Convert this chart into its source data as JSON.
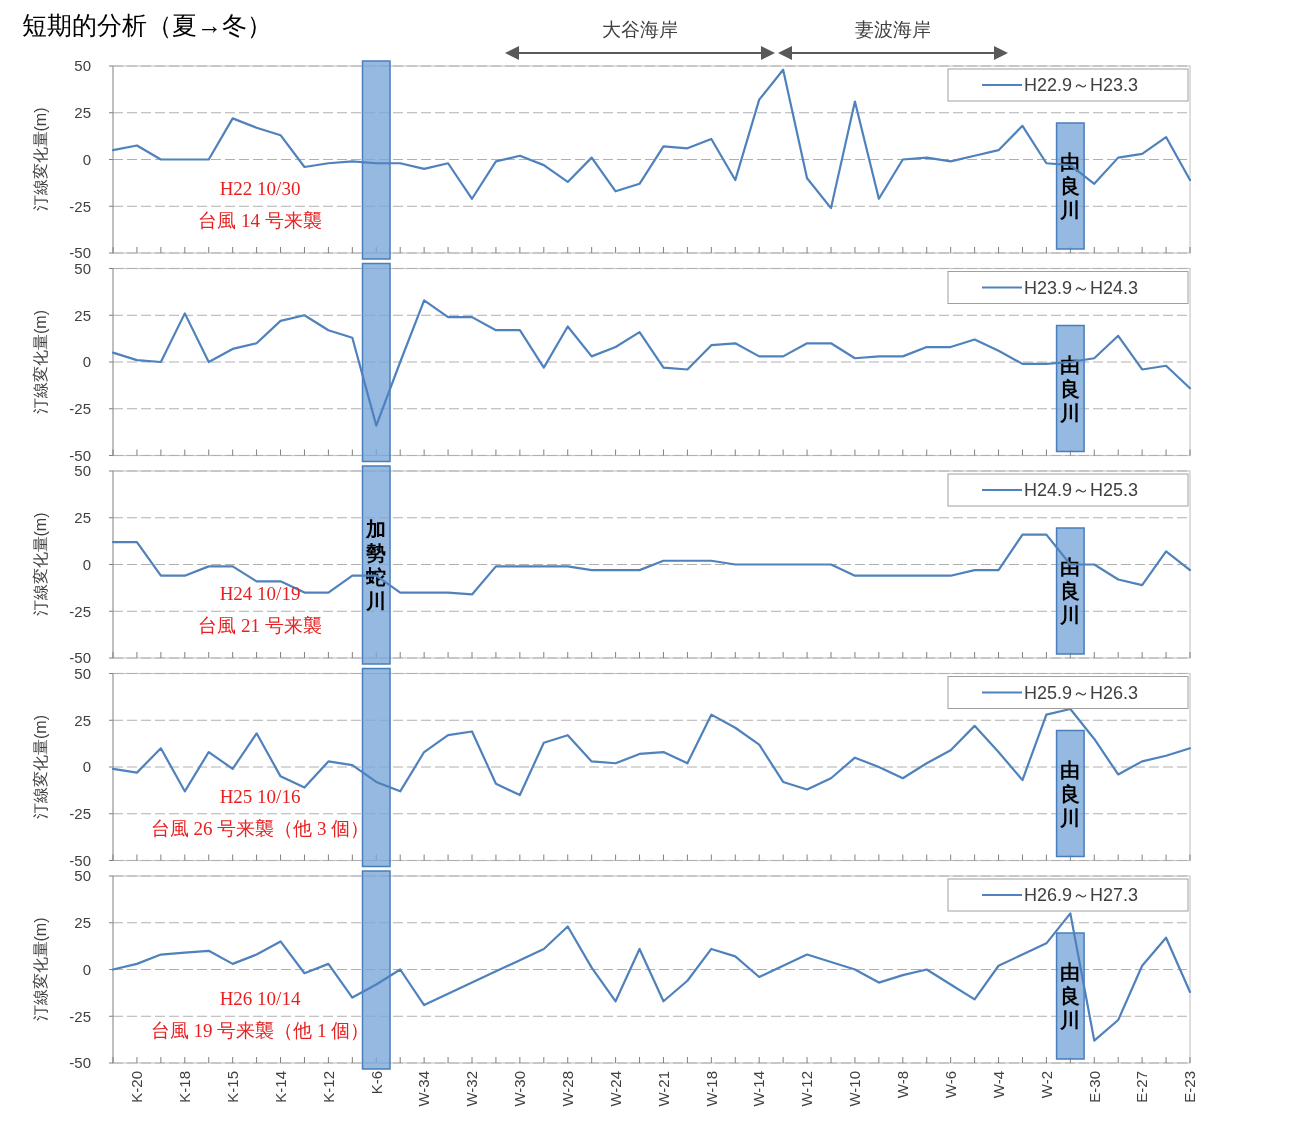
{
  "chart_data": [
    {
      "type": "line",
      "title": "短期的分析（夏→冬）",
      "ylabel": "汀線変化量(m)",
      "categories": [
        null,
        "K-20",
        null,
        "K-18",
        null,
        "K-15",
        null,
        "K-14",
        null,
        "K-12",
        null,
        "K-6",
        null,
        "W-34",
        null,
        "W-32",
        null,
        "W-30",
        null,
        "W-28",
        null,
        "W-24",
        null,
        "W-21",
        null,
        "W-18",
        null,
        "W-14",
        null,
        "W-12",
        null,
        "W-10",
        null,
        "W-8",
        null,
        "W-6",
        null,
        "W-4",
        null,
        "W-2",
        null,
        "E-30",
        null,
        "E-27",
        null,
        "E-23"
      ],
      "series": [
        {
          "name": "H22.9～H23.3",
          "color": "#4f81bd",
          "values": [
            5,
            7.5,
            0,
            0,
            0,
            22,
            17,
            13,
            -4,
            -2,
            -1,
            -2,
            -2,
            -5,
            -2,
            -21,
            -1,
            2,
            -3,
            -12,
            1,
            -17,
            -13,
            7,
            6,
            11,
            -11,
            32,
            48,
            -10,
            -26,
            31,
            -21,
            0,
            1,
            -1,
            2,
            5,
            18,
            -2,
            -3,
            -13,
            1,
            3,
            12,
            -11
          ]
        }
      ],
      "ylim": [
        -50,
        50
      ],
      "yticks": [
        -50,
        -25,
        0,
        25,
        50
      ],
      "grid": "y",
      "legend": "top right",
      "tick_labels": "y",
      "bands": [
        {
          "axis": "x",
          "from": "K-6",
          "to": "K-6",
          "color": "#7aa7d8"
        },
        {
          "axis": "x",
          "from": "W-2",
          "to": "E-30",
          "label": "由良川",
          "color": "#7aa7d8"
        }
      ],
      "annotations": [
        "大谷海岸",
        "妻波海岸",
        "H22 10/30",
        "台風 14 号来襲"
      ]
    },
    {
      "type": "line",
      "ylabel": "汀線変化量(m)",
      "categories": [
        null,
        "K-20",
        null,
        "K-18",
        null,
        "K-15",
        null,
        "K-14",
        null,
        "K-12",
        null,
        "K-6",
        null,
        "W-34",
        null,
        "W-32",
        null,
        "W-30",
        null,
        "W-28",
        null,
        "W-24",
        null,
        "W-21",
        null,
        "W-18",
        null,
        "W-14",
        null,
        "W-12",
        null,
        "W-10",
        null,
        "W-8",
        null,
        "W-6",
        null,
        "W-4",
        null,
        "W-2",
        null,
        "E-30",
        null,
        "E-27",
        null,
        "E-23"
      ],
      "series": [
        {
          "name": "H23.9～H24.3",
          "color": "#4f81bd",
          "values": [
            5,
            1,
            0,
            26,
            0,
            7,
            10,
            22,
            25,
            17,
            13,
            -34,
            0,
            33,
            24,
            24,
            17,
            17,
            -3,
            19,
            3,
            8,
            16,
            -3,
            -4,
            9,
            10,
            3,
            3,
            10,
            10,
            2,
            3,
            3,
            8,
            8,
            12,
            6,
            -1,
            -1,
            0,
            2,
            14,
            -4,
            -2,
            -14
          ]
        }
      ],
      "ylim": [
        -50,
        50
      ],
      "yticks": [
        -50,
        -25,
        0,
        25,
        50
      ],
      "grid": "y",
      "legend": "top right",
      "tick_labels": "y",
      "bands": [
        {
          "axis": "x",
          "from": "K-6",
          "to": "K-6",
          "color": "#7aa7d8"
        },
        {
          "axis": "x",
          "from": "W-2",
          "to": "E-30",
          "label": "由良川",
          "color": "#7aa7d8"
        }
      ]
    },
    {
      "type": "line",
      "ylabel": "汀線変化量(m)",
      "categories": [
        null,
        "K-20",
        null,
        "K-18",
        null,
        "K-15",
        null,
        "K-14",
        null,
        "K-12",
        null,
        "K-6",
        null,
        "W-34",
        null,
        "W-32",
        null,
        "W-30",
        null,
        "W-28",
        null,
        "W-24",
        null,
        "W-21",
        null,
        "W-18",
        null,
        "W-14",
        null,
        "W-12",
        null,
        "W-10",
        null,
        "W-8",
        null,
        "W-6",
        null,
        "W-4",
        null,
        "W-2",
        null,
        "E-30",
        null,
        "E-27",
        null,
        "E-23"
      ],
      "series": [
        {
          "name": "H24.9～H25.3",
          "color": "#4f81bd",
          "values": [
            12,
            12,
            -6,
            -6,
            -1,
            -1,
            -9,
            -9,
            -15,
            -15,
            -6,
            -6,
            -15,
            -15,
            -15,
            -16,
            -1,
            -1,
            -1,
            -1,
            -3,
            -3,
            -3,
            2,
            2,
            2,
            0,
            0,
            0,
            0,
            0,
            -6,
            -6,
            -6,
            -6,
            -6,
            -3,
            -3,
            16,
            16,
            0,
            0,
            -8,
            -11,
            7,
            -3
          ]
        }
      ],
      "ylim": [
        -50,
        50
      ],
      "yticks": [
        -50,
        -25,
        0,
        25,
        50
      ],
      "grid": "y",
      "legend": "top right",
      "tick_labels": "y",
      "bands": [
        {
          "axis": "x",
          "from": "K-6",
          "to": "K-6",
          "label": "加勢蛇川",
          "color": "#7aa7d8"
        },
        {
          "axis": "x",
          "from": "W-2",
          "to": "E-30",
          "label": "由良川",
          "color": "#7aa7d8"
        }
      ],
      "annotations": [
        "H24 10/19",
        "台風 21 号来襲"
      ]
    },
    {
      "type": "line",
      "ylabel": "汀線変化量(m)",
      "categories": [
        null,
        "K-20",
        null,
        "K-18",
        null,
        "K-15",
        null,
        "K-14",
        null,
        "K-12",
        null,
        "K-6",
        null,
        "W-34",
        null,
        "W-32",
        null,
        "W-30",
        null,
        "W-28",
        null,
        "W-24",
        null,
        "W-21",
        null,
        "W-18",
        null,
        "W-14",
        null,
        "W-12",
        null,
        "W-10",
        null,
        "W-8",
        null,
        "W-6",
        null,
        "W-4",
        null,
        "W-2",
        null,
        "E-30",
        null,
        "E-27",
        null,
        "E-23"
      ],
      "series": [
        {
          "name": "H25.9～H26.3",
          "color": "#4f81bd",
          "values": [
            -1,
            -3,
            10,
            -13,
            8,
            -1,
            18,
            -5,
            -11,
            3,
            1,
            -8,
            -13,
            8,
            17,
            19,
            -9,
            -15,
            13,
            17,
            3,
            2,
            7,
            8,
            2,
            28,
            21,
            12,
            -8,
            -12,
            -6,
            5,
            0,
            -6,
            2,
            9,
            22,
            8,
            -7,
            28,
            31,
            15,
            -4,
            3,
            6,
            10
          ]
        }
      ],
      "ylim": [
        -50,
        50
      ],
      "yticks": [
        -50,
        -25,
        0,
        25,
        50
      ],
      "grid": "y",
      "legend": "top right",
      "tick_labels": "y",
      "bands": [
        {
          "axis": "x",
          "from": "K-6",
          "to": "K-6",
          "color": "#7aa7d8"
        },
        {
          "axis": "x",
          "from": "W-2",
          "to": "E-30",
          "label": "由良川",
          "color": "#7aa7d8"
        }
      ],
      "annotations": [
        "H25 10/16",
        "台風 26 号来襲（他 3 個）"
      ]
    },
    {
      "type": "line",
      "ylabel": "汀線変化量(m)",
      "categories": [
        null,
        "K-20",
        null,
        "K-18",
        null,
        "K-15",
        null,
        "K-14",
        null,
        "K-12",
        null,
        "K-6",
        null,
        "W-34",
        null,
        "W-32",
        null,
        "W-30",
        null,
        "W-28",
        null,
        "W-24",
        null,
        "W-21",
        null,
        "W-18",
        null,
        "W-14",
        null,
        "W-12",
        null,
        "W-10",
        null,
        "W-8",
        null,
        "W-6",
        null,
        "W-4",
        null,
        "W-2",
        null,
        "E-30",
        null,
        "E-27",
        null,
        "E-23"
      ],
      "series": [
        {
          "name": "H26.9～H27.3",
          "color": "#4f81bd",
          "values": [
            0,
            3,
            8,
            9,
            10,
            3,
            8,
            15,
            -2,
            3,
            -15,
            -8,
            0,
            -19,
            -13,
            -7,
            -1,
            5,
            11,
            23,
            1,
            -17,
            11,
            -17,
            -6,
            11,
            7,
            -4,
            2,
            8,
            4,
            0,
            -7,
            -3,
            0,
            -8,
            -16,
            2,
            8,
            14,
            30,
            -38,
            -27,
            2,
            17,
            -12
          ]
        }
      ],
      "ylim": [
        -50,
        50
      ],
      "yticks": [
        -50,
        -25,
        0,
        25,
        50
      ],
      "grid": "y",
      "legend": "top right",
      "bands": [
        {
          "axis": "x",
          "from": "K-6",
          "to": "K-6",
          "color": "#7aa7d8"
        },
        {
          "axis": "x",
          "from": "W-2",
          "to": "E-30",
          "label": "由良川",
          "color": "#7aa7d8"
        }
      ],
      "annotations": [
        "H26 10/14",
        "台風 19 号来襲（他 1 個）"
      ]
    }
  ]
}
